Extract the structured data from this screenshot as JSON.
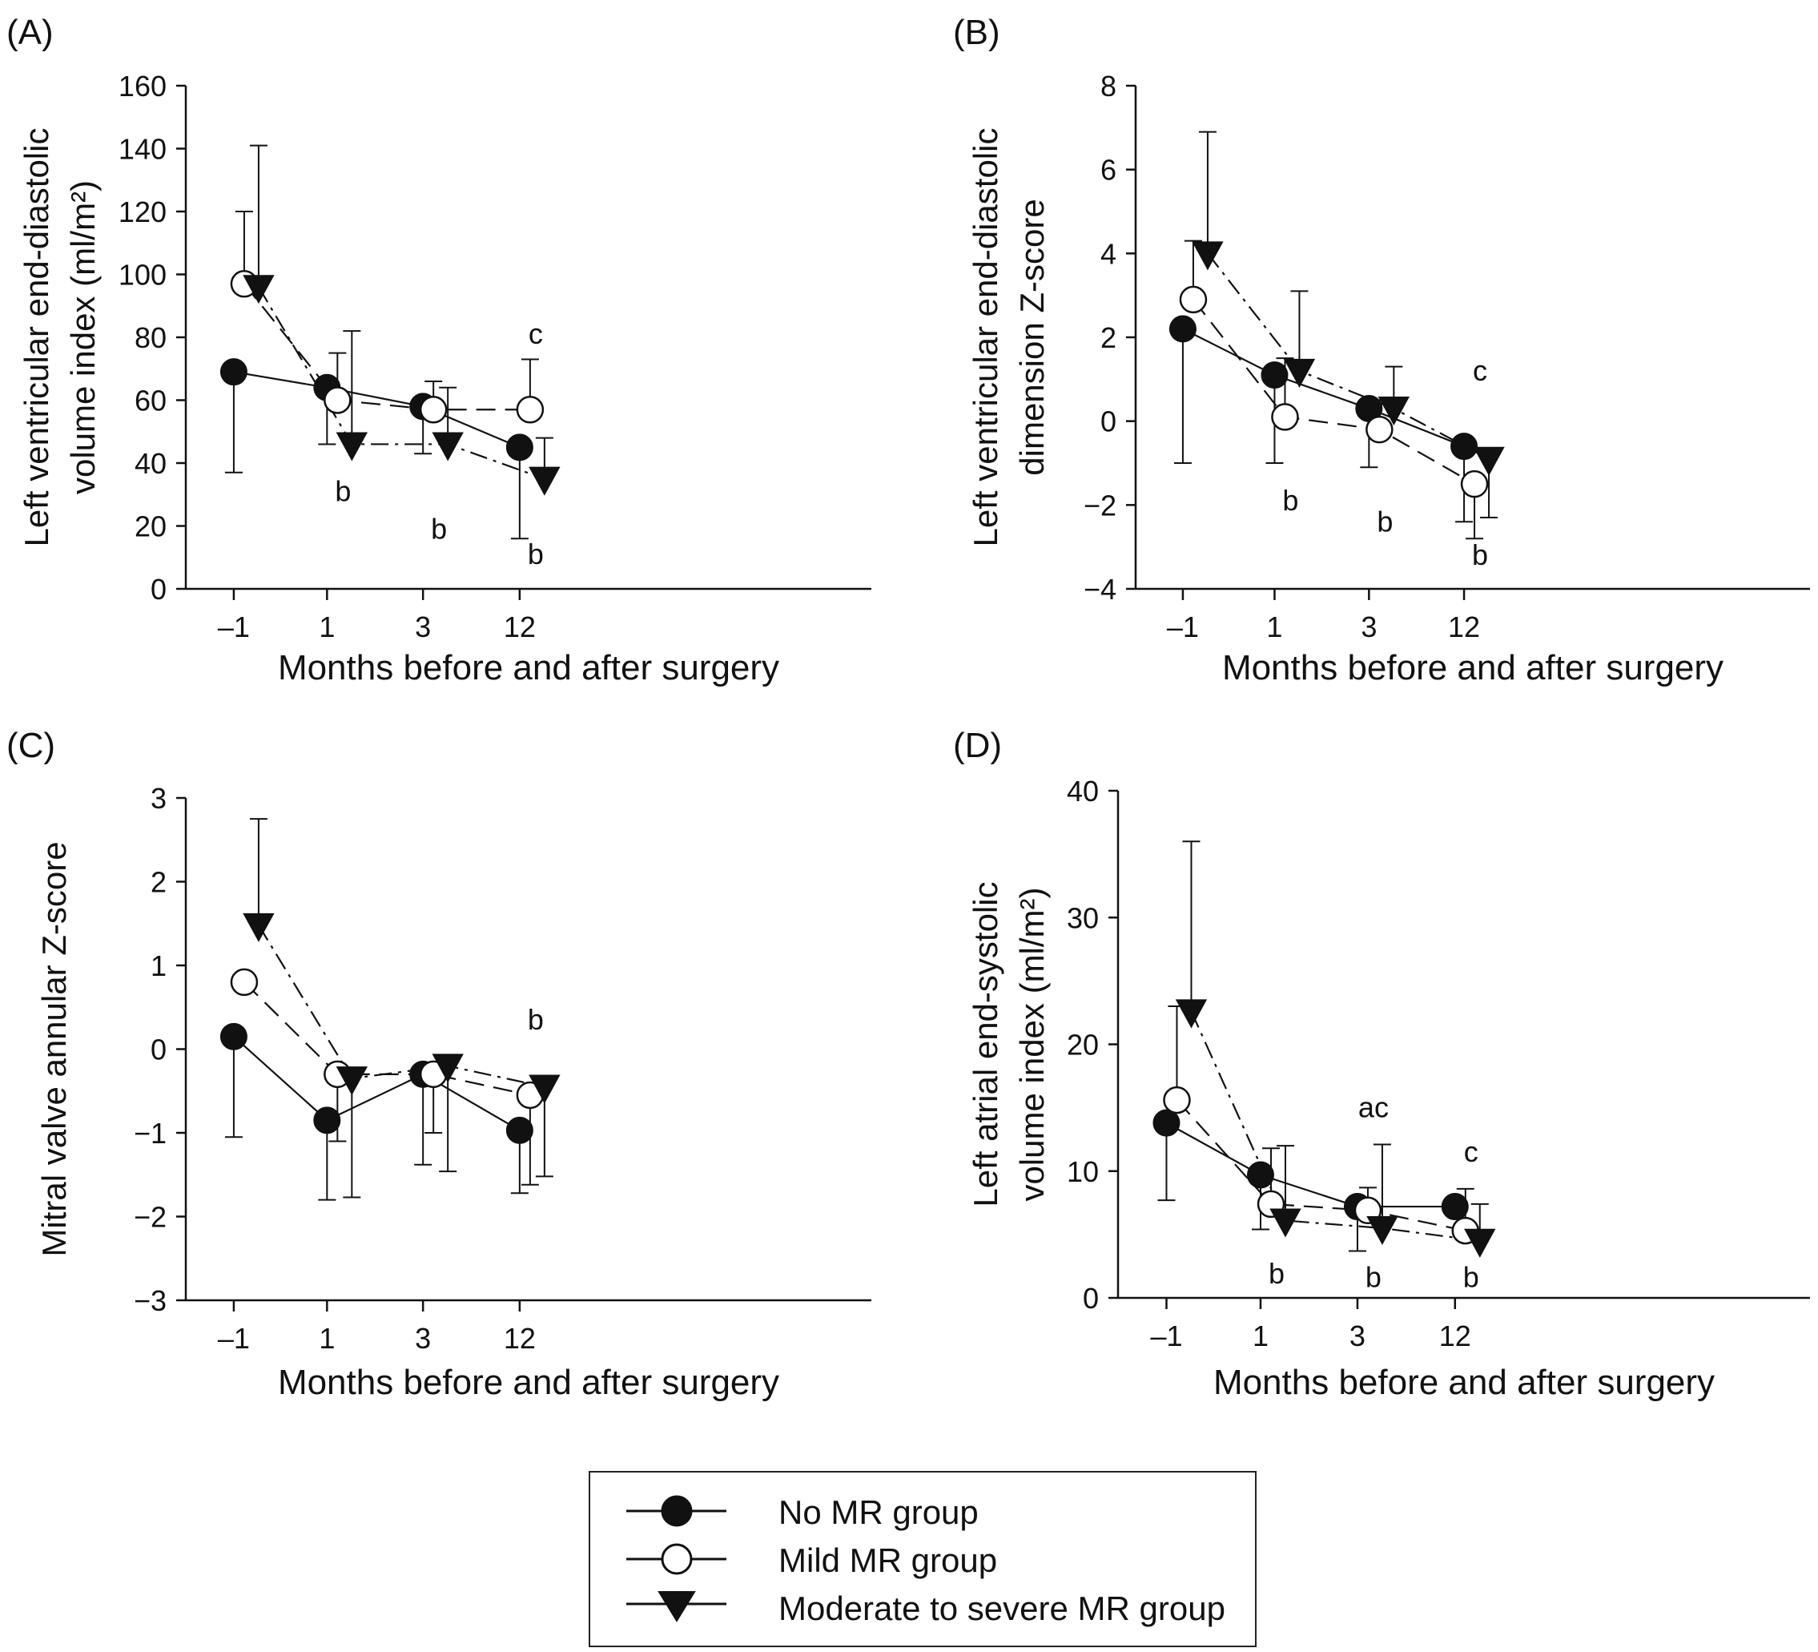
{
  "colors": {
    "ink": "#111111",
    "paper": "#ffffff"
  },
  "chart_data": [
    {
      "id": "A",
      "type": "line",
      "panel_label": "(A)",
      "ylabel_lines": [
        "Left ventricular end-diastolic",
        "volume index (ml/m²)"
      ],
      "xlabel": "Months before and after surgery",
      "categories": [
        "–1",
        "1",
        "3",
        "12"
      ],
      "ylim": [
        0,
        160
      ],
      "yticks": [
        0,
        20,
        40,
        60,
        80,
        100,
        120,
        140,
        160
      ],
      "series": [
        {
          "name": "No MR group",
          "marker": "filled-circle",
          "dash": "",
          "values": [
            69,
            64,
            58,
            45
          ],
          "err": [
            [
              37,
              69
            ],
            [
              46,
              64
            ],
            [
              43,
              58
            ],
            [
              16,
              45
            ]
          ]
        },
        {
          "name": "Mild MR group",
          "marker": "open-circle",
          "dash": "24 12",
          "values": [
            97,
            60,
            57,
            57
          ],
          "err": [
            [
              97,
              120
            ],
            [
              60,
              75
            ],
            [
              57,
              66
            ],
            [
              57,
              73
            ]
          ]
        },
        {
          "name": "Moderate to severe MR group",
          "marker": "filled-triangle",
          "dash": "22 8 4 8",
          "values": [
            96,
            46,
            46,
            35
          ],
          "err": [
            [
              96,
              141
            ],
            [
              46,
              82
            ],
            [
              46,
              64
            ],
            [
              35,
              48
            ]
          ]
        }
      ],
      "annotations": [
        {
          "text": "c",
          "cat": 3,
          "y": 81
        },
        {
          "text": "b",
          "cat": 1,
          "y": 31
        },
        {
          "text": "b",
          "cat": 2,
          "y": 19
        },
        {
          "text": "b",
          "cat": 3,
          "y": 11
        }
      ]
    },
    {
      "id": "B",
      "type": "line",
      "panel_label": "(B)",
      "ylabel_lines": [
        "Left ventricular end-diastolic",
        "dimension Z-score"
      ],
      "xlabel": "Months before and after surgery",
      "categories": [
        "–1",
        "1",
        "3",
        "12"
      ],
      "ylim": [
        -4,
        8
      ],
      "yticks": [
        -4,
        -2,
        0,
        2,
        4,
        6,
        8
      ],
      "series": [
        {
          "name": "No MR group",
          "marker": "filled-circle",
          "dash": "",
          "values": [
            2.2,
            1.1,
            0.3,
            -0.6
          ],
          "err": [
            [
              -1.0,
              2.2
            ],
            [
              -1.0,
              1.1
            ],
            [
              -1.1,
              0.3
            ],
            [
              -2.4,
              -0.6
            ]
          ]
        },
        {
          "name": "Mild MR group",
          "marker": "open-circle",
          "dash": "24 12",
          "values": [
            2.9,
            0.1,
            -0.2,
            -1.5
          ],
          "err": [
            [
              2.9,
              4.3
            ],
            [
              0.1,
              1.5
            ],
            [
              -0.2,
              0.5
            ],
            [
              -2.8,
              -1.5
            ]
          ]
        },
        {
          "name": "Moderate to severe MR group",
          "marker": "filled-triangle",
          "dash": "22 8 4 8",
          "values": [
            4.0,
            1.2,
            0.3,
            -0.9
          ],
          "err": [
            [
              4.0,
              6.9
            ],
            [
              1.2,
              3.1
            ],
            [
              0.3,
              1.3
            ],
            [
              -2.3,
              -0.9
            ]
          ]
        }
      ],
      "annotations": [
        {
          "text": "c",
          "cat": 3,
          "y": 1.2
        },
        {
          "text": "b",
          "cat": 1,
          "y": -1.9
        },
        {
          "text": "b",
          "cat": 2,
          "y": -2.4
        },
        {
          "text": "b",
          "cat": 3,
          "y": -3.2
        }
      ]
    },
    {
      "id": "C",
      "type": "line",
      "panel_label": "(C)",
      "ylabel_lines": [
        "Mitral valve annular Z-score"
      ],
      "xlabel": "Months before and after surgery",
      "categories": [
        "–1",
        "1",
        "3",
        "12"
      ],
      "ylim": [
        -3,
        3
      ],
      "yticks": [
        -3,
        -2,
        -1,
        0,
        1,
        2,
        3
      ],
      "series": [
        {
          "name": "No MR group",
          "marker": "filled-circle",
          "dash": "",
          "values": [
            0.15,
            -0.85,
            -0.3,
            -0.97
          ],
          "err": [
            [
              -1.05,
              0.15
            ],
            [
              -1.8,
              -0.85
            ],
            [
              -1.38,
              -0.3
            ],
            [
              -1.72,
              -0.97
            ]
          ]
        },
        {
          "name": "Mild MR group",
          "marker": "open-circle",
          "dash": "24 12",
          "values": [
            0.8,
            -0.3,
            -0.3,
            -0.55
          ],
          "err": [
            [
              0.8,
              0.8
            ],
            [
              -1.1,
              -0.3
            ],
            [
              -1.0,
              -0.3
            ],
            [
              -1.62,
              -0.55
            ]
          ]
        },
        {
          "name": "Moderate to severe MR group",
          "marker": "filled-triangle",
          "dash": "22 8 4 8",
          "values": [
            1.48,
            -0.35,
            -0.2,
            -0.45
          ],
          "err": [
            [
              1.48,
              2.75
            ],
            [
              -1.77,
              -0.35
            ],
            [
              -1.46,
              -0.2
            ],
            [
              -1.52,
              -0.45
            ]
          ]
        }
      ],
      "annotations": [
        {
          "text": "b",
          "cat": 3,
          "y": 0.35
        }
      ]
    },
    {
      "id": "D",
      "type": "line",
      "panel_label": "(D)",
      "ylabel_lines": [
        "Left atrial end-systolic",
        "volume index (ml/m²)"
      ],
      "xlabel": "Months before and after surgery",
      "categories": [
        "–1",
        "1",
        "3",
        "12"
      ],
      "ylim": [
        0,
        40
      ],
      "yticks": [
        0,
        10,
        20,
        30,
        40
      ],
      "series": [
        {
          "name": "No MR group",
          "marker": "filled-circle",
          "dash": "",
          "values": [
            13.8,
            9.7,
            7.2,
            7.2
          ],
          "err": [
            [
              7.7,
              13.8
            ],
            [
              5.4,
              9.7
            ],
            [
              3.7,
              7.2
            ],
            [
              7.2,
              7.2
            ]
          ]
        },
        {
          "name": "Mild MR group",
          "marker": "open-circle",
          "dash": "24 12",
          "values": [
            15.6,
            7.4,
            6.9,
            5.3
          ],
          "err": [
            [
              15.6,
              23.0
            ],
            [
              7.4,
              11.8
            ],
            [
              6.9,
              8.7
            ],
            [
              5.3,
              8.6
            ]
          ]
        },
        {
          "name": "Moderate to severe MR group",
          "marker": "filled-triangle",
          "dash": "22 8 4 8",
          "values": [
            22.6,
            6.1,
            5.5,
            4.5
          ],
          "err": [
            [
              22.6,
              36.0
            ],
            [
              6.1,
              12.0
            ],
            [
              5.5,
              12.1
            ],
            [
              4.5,
              7.4
            ]
          ]
        }
      ],
      "annotations": [
        {
          "text": "ac",
          "cat": 2,
          "y": 15.0
        },
        {
          "text": "c",
          "cat": 3,
          "y": 11.5
        },
        {
          "text": "b",
          "cat": 1,
          "y": 1.9
        },
        {
          "text": "b",
          "cat": 2,
          "y": 1.6
        },
        {
          "text": "b",
          "cat": 3,
          "y": 1.6
        }
      ]
    }
  ],
  "legend": {
    "items": [
      {
        "label": "No MR group",
        "marker": "filled-circle"
      },
      {
        "label": "Mild MR group",
        "marker": "open-circle"
      },
      {
        "label": "Moderate to severe MR group",
        "marker": "filled-triangle"
      }
    ]
  }
}
